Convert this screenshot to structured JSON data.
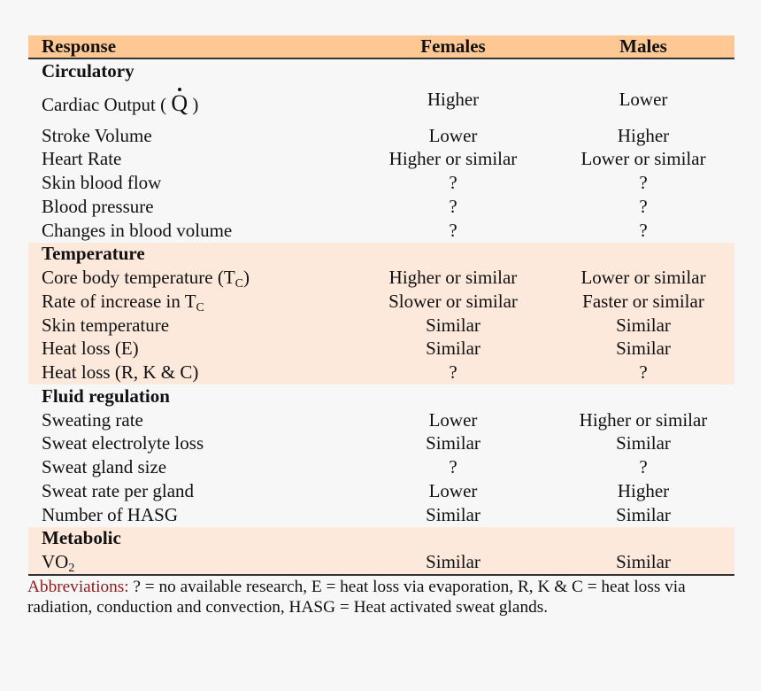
{
  "header": {
    "response": "Response",
    "females": "Females",
    "males": "Males"
  },
  "sections": [
    {
      "title": "Circulatory",
      "rows": [
        {
          "label": "Cardiac Output (",
          "symbol": "Q",
          "label_end": ")",
          "females": "Higher",
          "males": "Lower"
        },
        {
          "label": "Stroke Volume",
          "females": "Lower",
          "males": "Higher"
        },
        {
          "label": "Heart Rate",
          "females": "Higher or similar",
          "males": "Lower or similar"
        },
        {
          "label": "Skin blood flow",
          "females": "?",
          "males": "?"
        },
        {
          "label": "Blood pressure",
          "females": "?",
          "males": "?"
        },
        {
          "label": "Changes in blood volume",
          "females": "?",
          "males": "?"
        }
      ]
    },
    {
      "title": "Temperature",
      "rows": [
        {
          "label": "Core body temperature (T",
          "sub": "C",
          "label_end": ")",
          "females": "Higher or similar",
          "males": "Lower or similar"
        },
        {
          "label": "Rate of increase in T",
          "sub": "C",
          "females": "Slower or similar",
          "males": "Faster or similar"
        },
        {
          "label": "Skin temperature",
          "females": "Similar",
          "males": "Similar"
        },
        {
          "label": "Heat loss (E)",
          "females": "Similar",
          "males": "Similar"
        },
        {
          "label": "Heat loss (R, K & C)",
          "females": "?",
          "males": "?"
        }
      ]
    },
    {
      "title": "Fluid regulation",
      "rows": [
        {
          "label": "Sweating rate",
          "females": "Lower",
          "males": "Higher or similar"
        },
        {
          "label": "Sweat electrolyte loss",
          "females": "Similar",
          "males": "Similar"
        },
        {
          "label": "Sweat gland size",
          "females": "?",
          "males": "?"
        },
        {
          "label": "Sweat rate per gland",
          "females": "Lower",
          "males": "Higher"
        },
        {
          "label": "Number of HASG",
          "females": "Similar",
          "males": "Similar"
        }
      ]
    },
    {
      "title": "Metabolic",
      "rows": [
        {
          "label": "VO",
          "sub": "2",
          "females": "Similar",
          "males": "Similar"
        }
      ]
    }
  ],
  "footnote": {
    "label": "Abbreviations:",
    "text": " ? = no available research, E = heat loss via evaporation, R, K & C = heat loss via radiation, conduction and convection, HASG = Heat activated sweat glands."
  },
  "colors": {
    "header_bg": "#fdc893",
    "shaded_bg": "#fde9dc",
    "abbreviation": "#8b1a1a"
  }
}
